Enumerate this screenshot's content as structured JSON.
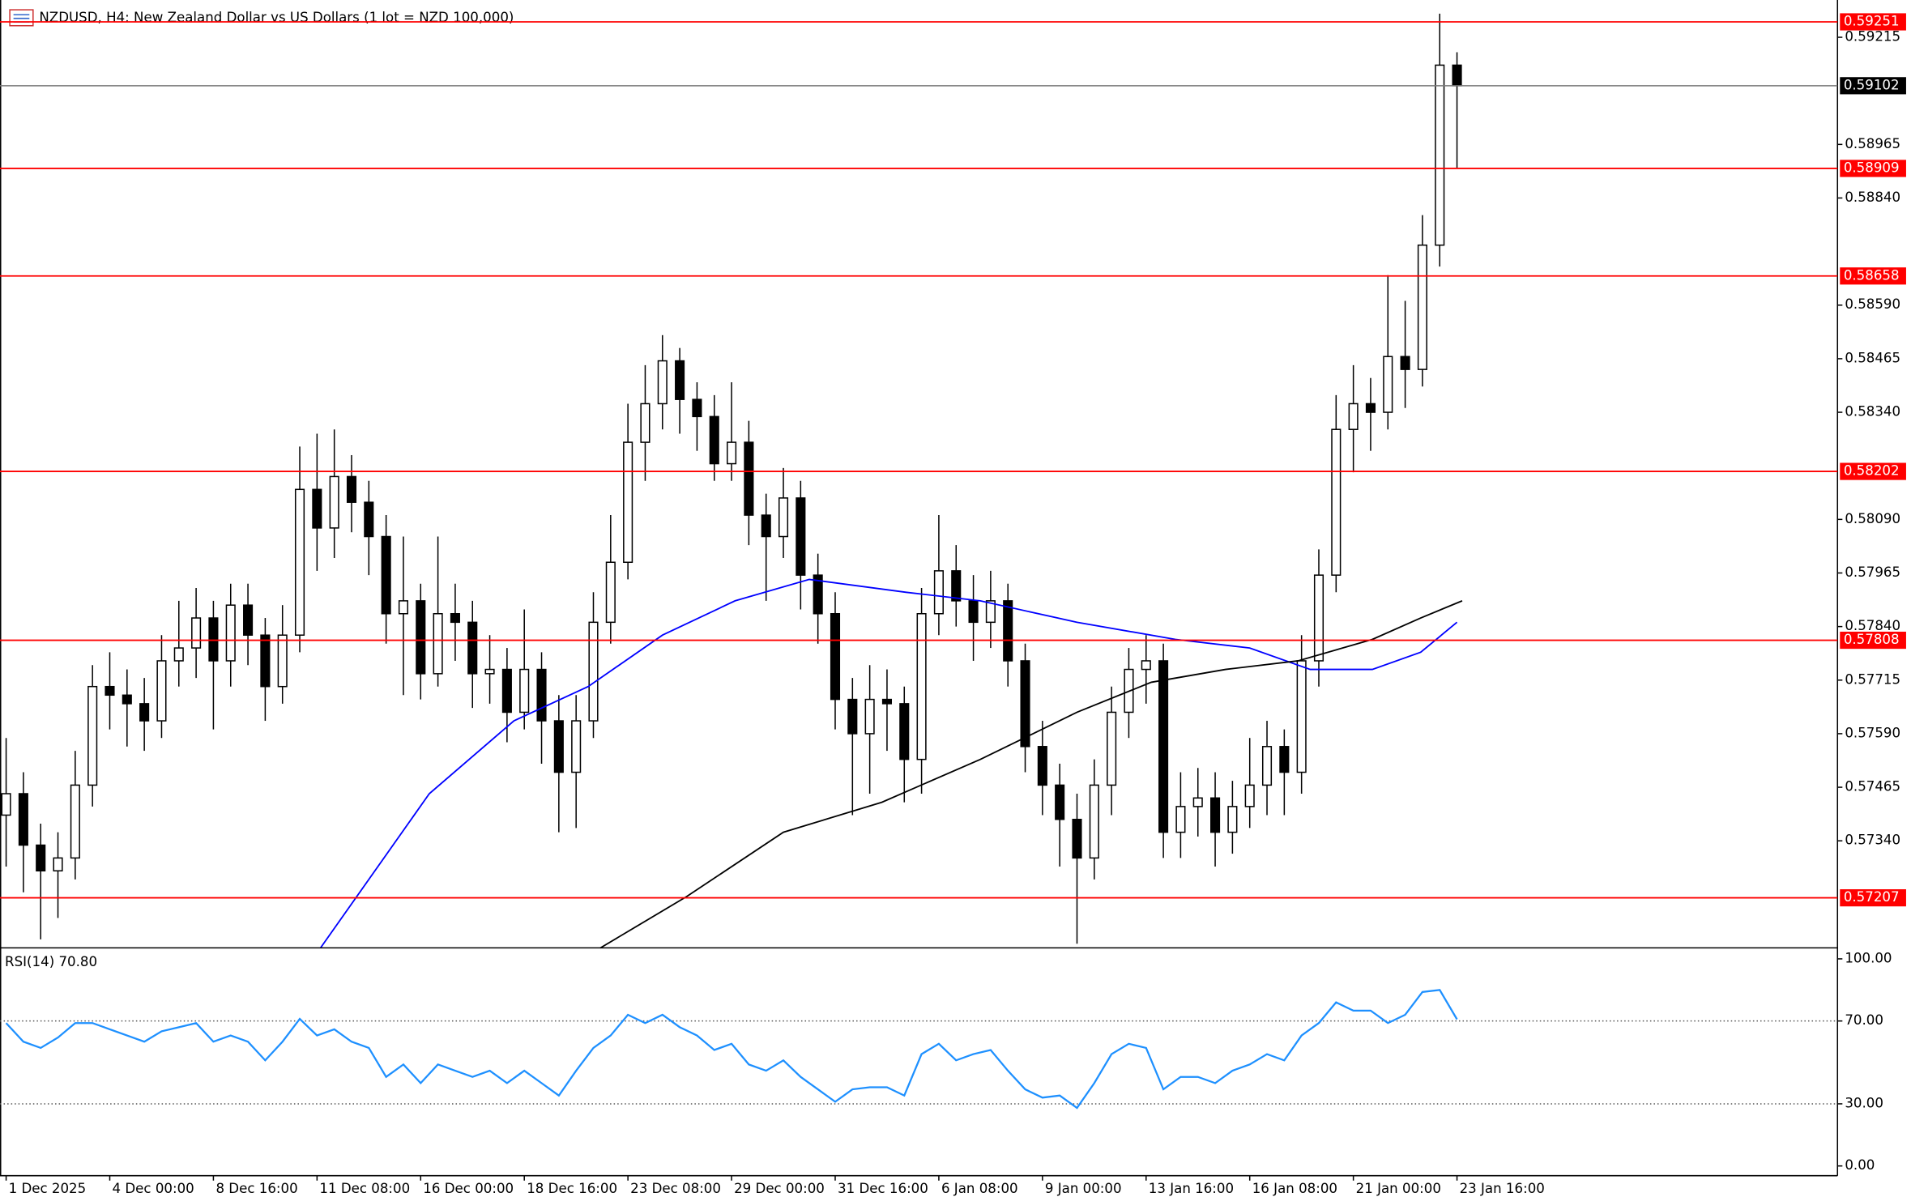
{
  "chart_data": [
    {
      "type": "candlestick",
      "title": "NZDUSD, H4:  New Zealand Dollar vs US Dollars (1 lot = NZD 100,000)",
      "xlim": [
        -0.355,
        106.03
      ],
      "ylim": [
        0.57093,
        0.59302
      ],
      "yticks": [
        0.59215,
        0.58965,
        {
          "value": 0.5884,
          "label": "0.58840"
        },
        {
          "value": 0.5859,
          "label": "0.58590"
        },
        0.58465,
        {
          "value": 0.5834,
          "label": "0.58340"
        },
        {
          "value": 0.5809,
          "label": "0.58090"
        },
        0.57965,
        {
          "value": 0.5784,
          "label": "0.57840"
        },
        0.57715,
        {
          "value": 0.5759,
          "label": "0.57590"
        },
        0.57465,
        {
          "value": 0.5734,
          "label": "0.57340"
        }
      ],
      "open": [
        0.574,
        0.5745,
        0.5733,
        0.5727,
        0.573,
        0.5747,
        0.577,
        0.5768,
        0.5766,
        0.5762,
        0.5776,
        0.5779,
        0.5786,
        0.5776,
        0.5789,
        0.5782,
        0.577,
        0.5782,
        0.5816,
        0.5807,
        0.5819,
        0.5813,
        0.5805,
        0.5787,
        0.579,
        0.5773,
        0.5787,
        0.5785,
        0.5773,
        0.5774,
        0.5764,
        0.5774,
        0.5762,
        0.575,
        0.5762,
        0.5785,
        0.5799,
        0.5827,
        0.5836,
        0.5846,
        0.5837,
        0.5833,
        0.5822,
        0.5827,
        0.581,
        0.5805,
        0.5814,
        0.5796,
        0.5787,
        0.5767,
        0.5759,
        0.5767,
        0.5766,
        0.5753,
        0.5787,
        0.5797,
        0.579,
        0.5785,
        0.579,
        0.5776,
        0.5756,
        0.5747,
        0.5739,
        0.573,
        0.5747,
        0.5764,
        0.5774,
        0.5776,
        0.5736,
        0.5742,
        0.5744,
        0.5736,
        0.5742,
        0.5747,
        0.5756,
        0.575,
        0.5776,
        0.5796,
        0.583,
        0.5836,
        0.5834,
        0.5847,
        0.5844,
        0.5873,
        0.5915
      ],
      "high": [
        0.5758,
        0.575,
        0.5738,
        0.5736,
        0.5755,
        0.5775,
        0.5778,
        0.5774,
        0.5772,
        0.5782,
        0.579,
        0.5793,
        0.579,
        0.5794,
        0.5794,
        0.5786,
        0.5789,
        0.5826,
        0.5829,
        0.583,
        0.5824,
        0.5818,
        0.581,
        0.5805,
        0.5794,
        0.5805,
        0.5794,
        0.579,
        0.5782,
        0.5779,
        0.5788,
        0.5778,
        0.5768,
        0.5768,
        0.5792,
        0.581,
        0.5836,
        0.5845,
        0.5852,
        0.5849,
        0.5841,
        0.5838,
        0.5841,
        0.5832,
        0.5815,
        0.5821,
        0.5818,
        0.5801,
        0.5792,
        0.5772,
        0.5775,
        0.5774,
        0.577,
        0.5793,
        0.581,
        0.5803,
        0.5796,
        0.5797,
        0.5794,
        0.578,
        0.5762,
        0.5752,
        0.5745,
        0.5753,
        0.577,
        0.5779,
        0.5782,
        0.578,
        0.575,
        0.5751,
        0.575,
        0.5748,
        0.5758,
        0.5762,
        0.576,
        0.5782,
        0.5802,
        0.5838,
        0.5845,
        0.5842,
        0.5866,
        0.586,
        0.588,
        0.5927,
        0.5918
      ],
      "low": [
        0.5728,
        0.5722,
        0.5711,
        0.5716,
        0.5725,
        0.5742,
        0.576,
        0.5756,
        0.5755,
        0.5758,
        0.577,
        0.5772,
        0.576,
        0.577,
        0.5775,
        0.5762,
        0.5766,
        0.5778,
        0.5797,
        0.58,
        0.5806,
        0.5796,
        0.578,
        0.5768,
        0.5767,
        0.577,
        0.5776,
        0.5765,
        0.5766,
        0.5757,
        0.576,
        0.5752,
        0.5736,
        0.5737,
        0.5758,
        0.578,
        0.5795,
        0.5818,
        0.583,
        0.5829,
        0.5825,
        0.5818,
        0.5818,
        0.5803,
        0.579,
        0.58,
        0.5788,
        0.578,
        0.576,
        0.574,
        0.5745,
        0.5755,
        0.5743,
        0.5745,
        0.5782,
        0.5784,
        0.5776,
        0.5779,
        0.577,
        0.575,
        0.574,
        0.5728,
        0.571,
        0.5725,
        0.574,
        0.5758,
        0.5766,
        0.573,
        0.573,
        0.5735,
        0.5728,
        0.5731,
        0.5737,
        0.574,
        0.574,
        0.5745,
        0.577,
        0.5792,
        0.582,
        0.5825,
        0.583,
        0.5835,
        0.584,
        0.5868,
        0.5891
      ],
      "close": [
        0.5745,
        0.5733,
        0.5727,
        0.573,
        0.5747,
        0.577,
        0.5768,
        0.5766,
        0.5762,
        0.5776,
        0.5779,
        0.5786,
        0.5776,
        0.5789,
        0.5782,
        0.577,
        0.5782,
        0.5816,
        0.5807,
        0.5819,
        0.5813,
        0.5805,
        0.5787,
        0.579,
        0.5773,
        0.5787,
        0.5785,
        0.5773,
        0.5774,
        0.5764,
        0.5774,
        0.5762,
        0.575,
        0.5762,
        0.5785,
        0.5799,
        0.5827,
        0.5836,
        0.5846,
        0.5837,
        0.5833,
        0.5822,
        0.5827,
        0.581,
        0.5805,
        0.5814,
        0.5796,
        0.5787,
        0.5767,
        0.5759,
        0.5767,
        0.5766,
        0.5753,
        0.5787,
        0.5797,
        0.579,
        0.5785,
        0.579,
        0.5776,
        0.5756,
        0.5747,
        0.5739,
        0.573,
        0.5747,
        0.5764,
        0.5774,
        0.5776,
        0.5736,
        0.5742,
        0.5744,
        0.5736,
        0.5742,
        0.5747,
        0.5756,
        0.575,
        0.5776,
        0.5796,
        0.583,
        0.5836,
        0.5834,
        0.5847,
        0.5844,
        0.5873,
        0.5915,
        0.59102
      ],
      "candle_color": "#000000",
      "up_fill": "#ffffff",
      "lines": [
        {
          "color": "#0000ff",
          "x": [
            18.2,
            24.5,
            29.4,
            33.7,
            38,
            42.2,
            46.5,
            52.1,
            56.4,
            62,
            67.7,
            72,
            75.5,
            79.1,
            81.9,
            84
          ],
          "values": [
            0.5709,
            0.5745,
            0.5762,
            0.577,
            0.5782,
            0.579,
            0.5795,
            0.5792,
            0.579,
            0.5785,
            0.5781,
            0.5779,
            0.5774,
            0.5774,
            0.5778,
            0.5785
          ]
        },
        {
          "color": "#000000",
          "x": [
            34.4,
            39.4,
            45,
            50.7,
            56.4,
            62,
            66.3,
            70.6,
            74.8,
            79.1,
            81.9,
            84.3
          ],
          "values": [
            0.5709,
            0.5721,
            0.5736,
            0.5743,
            0.5753,
            0.5764,
            0.5771,
            0.5774,
            0.5776,
            0.5781,
            0.5786,
            0.579
          ]
        }
      ],
      "levels": [
        0.59251,
        0.58909,
        0.58658,
        0.58202,
        0.57808,
        0.57207
      ],
      "level_color": "#ff0000",
      "current_price": 0.59102
    },
    {
      "type": "line",
      "title": "RSI(14) 70.80",
      "xlim": [
        -0.355,
        106.03
      ],
      "ylim": [
        -4.7,
        104.7
      ],
      "yticks": [
        {
          "value": 100,
          "label": "100.00"
        },
        {
          "value": 70,
          "label": "70.00"
        },
        {
          "value": 30,
          "label": "30.00"
        },
        {
          "value": 0,
          "label": "0.00"
        }
      ],
      "levels": [
        70,
        30
      ],
      "color": "#1e90ff",
      "values": [
        69,
        60,
        57,
        62,
        69,
        69,
        66,
        63,
        60,
        65,
        67,
        69,
        60,
        63,
        60,
        51,
        60,
        71,
        63,
        66,
        60,
        57,
        43,
        49,
        40,
        49,
        46,
        43,
        46,
        40,
        46,
        40,
        34,
        46,
        57,
        63,
        73,
        69,
        73,
        67,
        63,
        56,
        59,
        49,
        46,
        51,
        43,
        37,
        31,
        37,
        38,
        38,
        34,
        54,
        59,
        51,
        54,
        56,
        46,
        37,
        33,
        34,
        28,
        40,
        54,
        59,
        57,
        37,
        43,
        43,
        40,
        46,
        49,
        54,
        51,
        63,
        69,
        79,
        75,
        75,
        69,
        73,
        84,
        85,
        70.8
      ],
      "xticks": [
        {
          "value": 0,
          "label": "1 Dec 2025"
        },
        {
          "value": 6,
          "label": "4 Dec 00:00"
        },
        {
          "value": 12,
          "label": "8 Dec 16:00"
        },
        {
          "value": 18,
          "label": "11 Dec 08:00"
        },
        {
          "value": 24,
          "label": "16 Dec 00:00"
        },
        {
          "value": 30,
          "label": "18 Dec 16:00"
        },
        {
          "value": 36,
          "label": "23 Dec 08:00"
        },
        {
          "value": 42,
          "label": "29 Dec 00:00"
        },
        {
          "value": 48,
          "label": "31 Dec 16:00"
        },
        {
          "value": 54,
          "label": "6 Jan 08:00"
        },
        {
          "value": 60,
          "label": "9 Jan 00:00"
        },
        {
          "value": 66,
          "label": "13 Jan 16:00"
        },
        {
          "value": 72,
          "label": "16 Jan 08:00"
        },
        {
          "value": 78,
          "label": "21 Jan 00:00"
        },
        {
          "value": 84,
          "label": "23 Jan 16:00"
        }
      ]
    }
  ]
}
